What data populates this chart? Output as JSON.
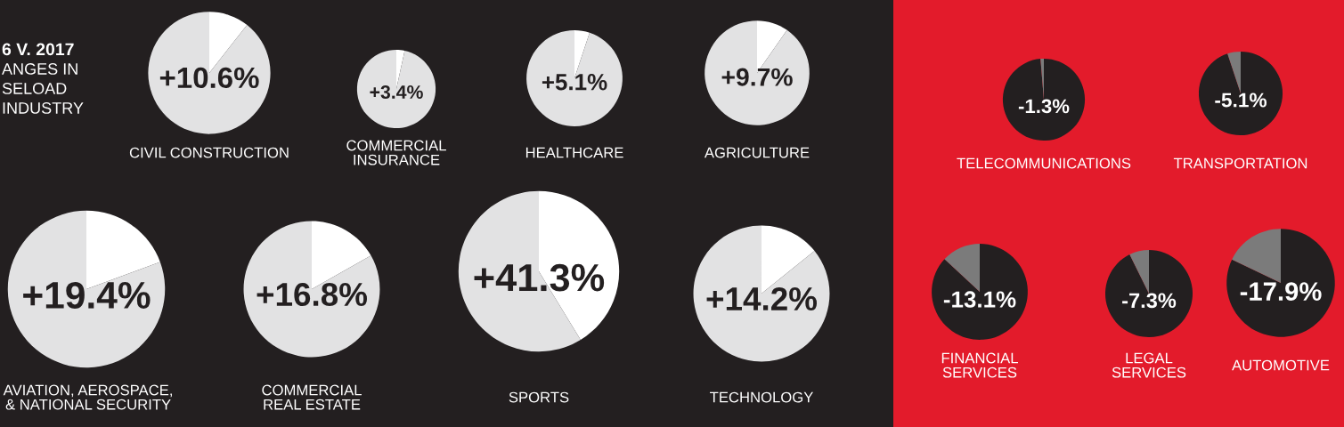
{
  "chart_data": [
    {
      "type": "other",
      "annotations": [
        "6 V. 2017",
        "ANGES IN",
        "SELOAD",
        "INDUSTRY"
      ]
    },
    {
      "type": "pie",
      "title": "CIVIL CONSTRUCTION",
      "categories": [
        null,
        null
      ],
      "values": [
        10.6,
        89.4
      ],
      "colors": [
        "#ffffff",
        "#e2e2e3"
      ],
      "annotations": [
        "+10.6%"
      ]
    },
    {
      "type": "pie",
      "title": "COMMERCIAL\nINSURANCE",
      "categories": [
        null,
        null
      ],
      "values": [
        3.4,
        96.6
      ],
      "colors": [
        "#ffffff",
        "#e2e2e3"
      ],
      "annotations": [
        "+3.4%"
      ]
    },
    {
      "type": "pie",
      "title": "HEALTHCARE",
      "categories": [
        null,
        null
      ],
      "values": [
        5.1,
        94.9
      ],
      "colors": [
        "#ffffff",
        "#e2e2e3"
      ],
      "annotations": [
        "+5.1%"
      ]
    },
    {
      "type": "pie",
      "title": "AGRICULTURE",
      "categories": [
        null,
        null
      ],
      "values": [
        9.7,
        90.3
      ],
      "colors": [
        "#ffffff",
        "#e2e2e3"
      ],
      "annotations": [
        "+9.7%"
      ]
    },
    {
      "type": "pie",
      "title": "AVIATION, AEROSPACE,\n& NATIONAL SECURITY",
      "categories": [
        null,
        null
      ],
      "values": [
        19.4,
        80.6
      ],
      "colors": [
        "#ffffff",
        "#e2e2e3"
      ],
      "annotations": [
        "+19.4%"
      ]
    },
    {
      "type": "pie",
      "title": "COMMERCIAL\nREAL ESTATE",
      "categories": [
        null,
        null
      ],
      "values": [
        16.8,
        83.2
      ],
      "colors": [
        "#ffffff",
        "#e2e2e3"
      ],
      "annotations": [
        "+16.8%"
      ]
    },
    {
      "type": "pie",
      "title": "SPORTS",
      "categories": [
        null,
        null
      ],
      "values": [
        41.3,
        58.7
      ],
      "colors": [
        "#ffffff",
        "#e2e2e3"
      ],
      "annotations": [
        "+41.3%"
      ]
    },
    {
      "type": "pie",
      "title": "TECHNOLOGY",
      "categories": [
        null,
        null
      ],
      "values": [
        14.2,
        85.8
      ],
      "colors": [
        "#ffffff",
        "#e2e2e3"
      ],
      "annotations": [
        "+14.2%"
      ]
    },
    {
      "type": "pie",
      "title": "TELECOMMUNICATIONS",
      "categories": [
        null,
        null
      ],
      "values": [
        98.7,
        1.3
      ],
      "colors": [
        "#231f20",
        "#7b7b7b"
      ],
      "annotations": [
        "-1.3%"
      ]
    },
    {
      "type": "pie",
      "title": "TRANSPORTATION",
      "categories": [
        null,
        null
      ],
      "values": [
        94.9,
        5.1
      ],
      "colors": [
        "#231f20",
        "#7b7b7b"
      ],
      "annotations": [
        "-5.1%"
      ]
    },
    {
      "type": "pie",
      "title": "FINANCIAL\nSERVICES",
      "categories": [
        null,
        null
      ],
      "values": [
        86.9,
        13.1
      ],
      "colors": [
        "#231f20",
        "#7b7b7b"
      ],
      "annotations": [
        "-13.1%"
      ]
    },
    {
      "type": "pie",
      "title": "LEGAL\nSERVICES",
      "categories": [
        null,
        null
      ],
      "values": [
        92.7,
        7.3
      ],
      "colors": [
        "#231f20",
        "#7b7b7b"
      ],
      "annotations": [
        "-7.3%"
      ]
    },
    {
      "type": "pie",
      "title": "AUTOMOTIVE",
      "categories": [
        null,
        null
      ],
      "values": [
        82.1,
        17.9
      ],
      "colors": [
        "#231f20",
        "#7b7b7b"
      ],
      "annotations": [
        "-17.9%"
      ]
    }
  ]
}
